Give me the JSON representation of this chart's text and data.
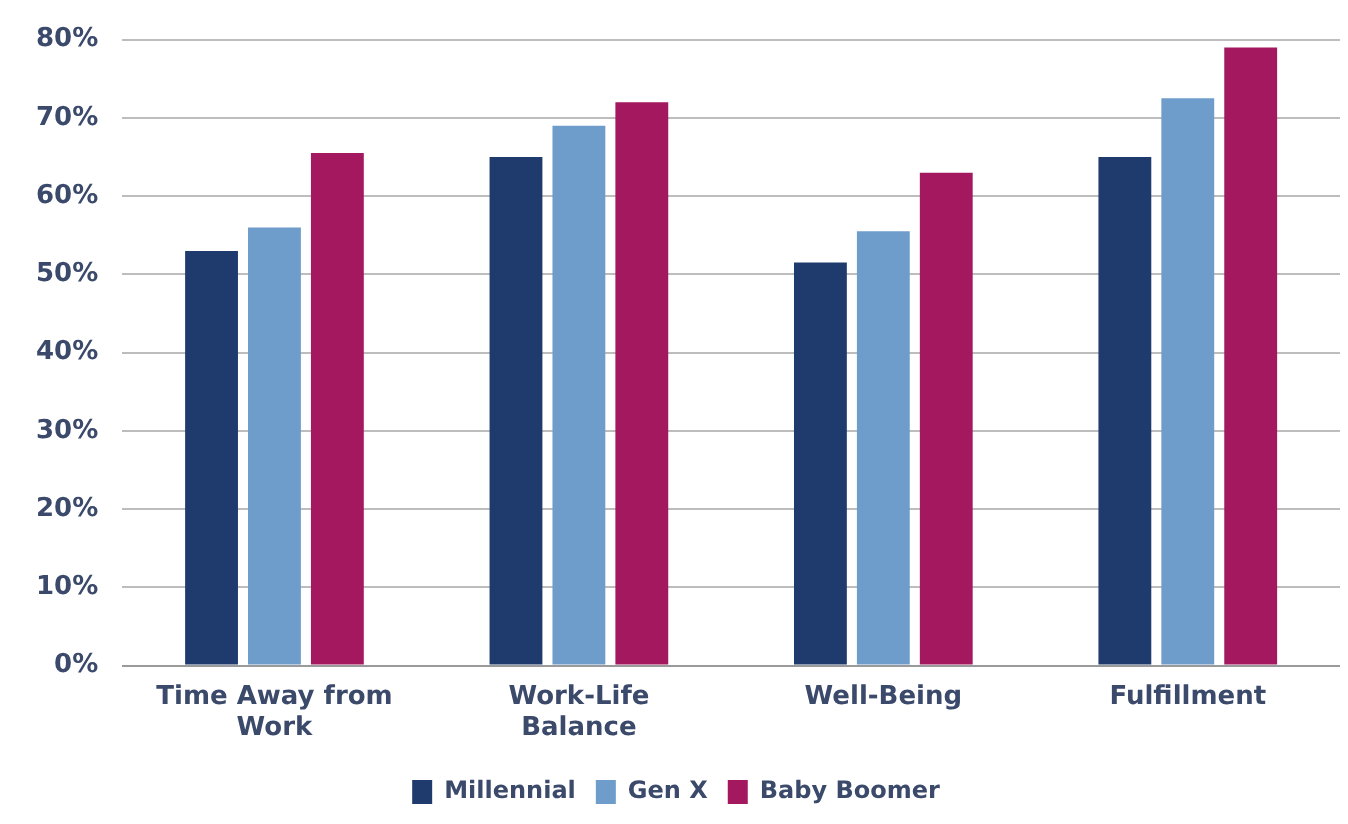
{
  "chart_data": {
    "type": "bar",
    "categories": [
      "Time Away from Work",
      "Work-Life Balance",
      "Well-Being",
      "Fulfillment"
    ],
    "series": [
      {
        "name": "Millennial",
        "color": "#1f3b6e",
        "values": [
          53,
          65,
          51.5,
          65
        ]
      },
      {
        "name": "Gen X",
        "color": "#6e9ccb",
        "values": [
          56,
          69,
          55.5,
          72.5
        ]
      },
      {
        "name": "Baby Boomer",
        "color": "#a3185e",
        "values": [
          65.5,
          72,
          63,
          79
        ]
      }
    ],
    "ylim": [
      0,
      80
    ],
    "yticks": [
      {
        "value": 0,
        "label": "0%"
      },
      {
        "value": 10,
        "label": "10%"
      },
      {
        "value": 20,
        "label": "20%"
      },
      {
        "value": 30,
        "label": "30%"
      },
      {
        "value": 40,
        "label": "40%"
      },
      {
        "value": 50,
        "label": "50%"
      },
      {
        "value": 60,
        "label": "60%"
      },
      {
        "value": 70,
        "label": "70%"
      },
      {
        "value": 80,
        "label": "80%"
      }
    ],
    "grid": "y",
    "legend": "bottom"
  }
}
